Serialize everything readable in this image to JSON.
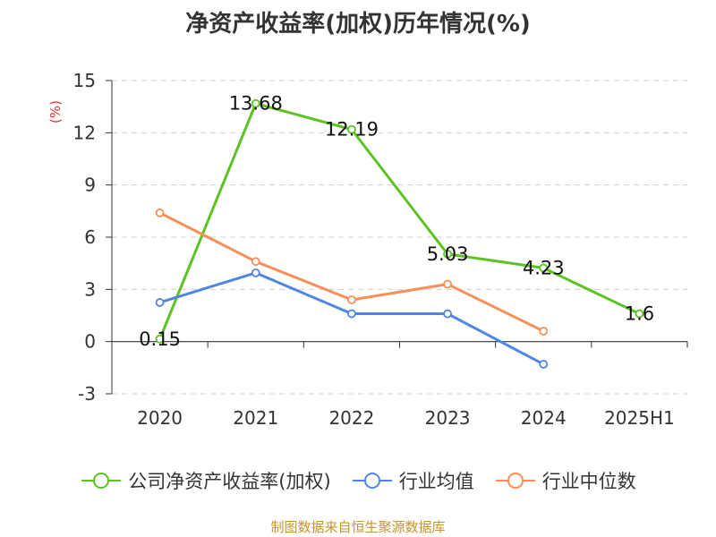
{
  "title": "净资产收益率(加权)历年情况(%)",
  "source": "制图数据来自恒生聚源数据库",
  "chart_data": {
    "type": "line",
    "title": "净资产收益率(加权)历年情况(%)",
    "ylabel": "(%)",
    "xlabel": "",
    "categories": [
      "2020",
      "2021",
      "2022",
      "2023",
      "2024",
      "2025H1"
    ],
    "ylim": [
      -3,
      15
    ],
    "yticks": [
      -3,
      0,
      3,
      6,
      9,
      12,
      15
    ],
    "grid": true,
    "legend_position": "bottom",
    "series": [
      {
        "name": "公司净资产收益率(加权)",
        "color": "#5cc323",
        "values": [
          0.15,
          13.68,
          12.19,
          5.03,
          4.23,
          1.6
        ],
        "labels": [
          "0.15",
          "13.68",
          "12.19",
          "5.03",
          "4.23",
          "1.6"
        ]
      },
      {
        "name": "行业均值",
        "color": "#4f87e0",
        "values": [
          2.25,
          3.95,
          1.6,
          1.6,
          -1.3,
          null
        ]
      },
      {
        "name": "行业中位数",
        "color": "#f68f5a",
        "values": [
          7.4,
          4.6,
          2.4,
          3.3,
          0.6,
          null
        ]
      }
    ]
  }
}
